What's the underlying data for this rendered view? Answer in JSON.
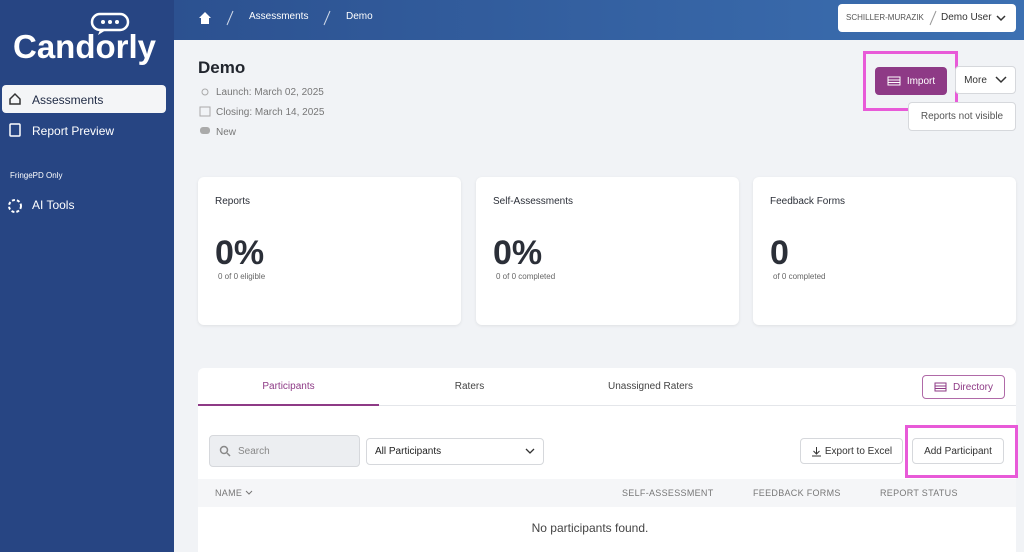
{
  "sidebar": {
    "logo": "Candorly",
    "nav": [
      "Assessments",
      "Report Preview"
    ],
    "section": "FringePD Only",
    "tools": [
      "AI Tools"
    ]
  },
  "breadcrumb": [
    "Assessments",
    "Demo"
  ],
  "account": {
    "org": "SCHILLER-MURAZIK",
    "user": "Demo User"
  },
  "assessment": {
    "title": "Demo",
    "launch": "Launch: March 02, 2025",
    "closing": "Closing: March 14, 2025",
    "status": "New"
  },
  "actions": {
    "import": "Import",
    "more": "More",
    "visibility": "Reports not visible"
  },
  "cards": [
    {
      "label": "Reports",
      "value": "0%",
      "note": "0 of 0 eligible"
    },
    {
      "label": "Self-Assessments",
      "value": "0%",
      "note": "0 of 0 completed"
    },
    {
      "label": "Feedback Forms",
      "value": "0",
      "note": "of 0 completed"
    }
  ],
  "tabs": [
    "Participants",
    "Raters",
    "Unassigned Raters"
  ],
  "directory": "Directory",
  "filters": {
    "search": "Search",
    "select": "All Participants"
  },
  "buttons": {
    "export": "Export to Excel",
    "add": "Add Participant"
  },
  "table": {
    "columns": [
      "NAME",
      "SELF-ASSESSMENT",
      "FEEDBACK FORMS",
      "REPORT STATUS"
    ],
    "empty": "No participants found."
  }
}
